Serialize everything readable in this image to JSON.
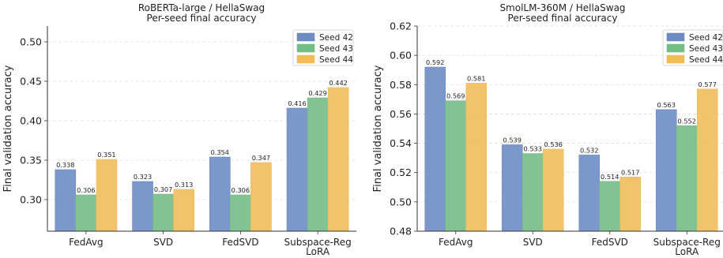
{
  "chart_data": [
    {
      "type": "bar",
      "title": "RoBERTa-large / HellaSwag",
      "subtitle": "Per-seed final accuracy",
      "xlabel": "",
      "ylabel": "Final validation accuracy",
      "categories": [
        "FedAvg",
        "SVD",
        "FedSVD",
        "Subspace-Reg\nLoRA"
      ],
      "ylim": [
        0.26,
        0.52
      ],
      "yticks": [
        "0.30",
        "0.35",
        "0.40",
        "0.45",
        "0.50"
      ],
      "ytick_values": [
        0.3,
        0.35,
        0.4,
        0.45,
        0.5
      ],
      "grid": true,
      "legend_position": "top-right",
      "series": [
        {
          "name": "Seed 42",
          "color": "#6e8cc4",
          "values": [
            0.338,
            0.323,
            0.354,
            0.416
          ],
          "labels": [
            "0.338",
            "0.323",
            "0.354",
            "0.416"
          ]
        },
        {
          "name": "Seed 43",
          "color": "#74bd85",
          "values": [
            0.306,
            0.307,
            0.306,
            0.429
          ],
          "labels": [
            "0.306",
            "0.307",
            "0.306",
            "0.429"
          ]
        },
        {
          "name": "Seed 44",
          "color": "#f0bc5a",
          "values": [
            0.351,
            0.313,
            0.347,
            0.442
          ],
          "labels": [
            "0.351",
            "0.313",
            "0.347",
            "0.442"
          ]
        }
      ]
    },
    {
      "type": "bar",
      "title": "SmolLM-360M / HellaSwag",
      "subtitle": "Per-seed final accuracy",
      "xlabel": "",
      "ylabel": "Final validation accuracy",
      "categories": [
        "FedAvg",
        "SVD",
        "FedSVD",
        "Subspace-Reg\nLoRA"
      ],
      "ylim": [
        0.48,
        0.62
      ],
      "yticks": [
        "0.48",
        "0.50",
        "0.52",
        "0.54",
        "0.56",
        "0.58",
        "0.60",
        "0.62"
      ],
      "ytick_values": [
        0.48,
        0.5,
        0.52,
        0.54,
        0.56,
        0.58,
        0.6,
        0.62
      ],
      "grid": true,
      "legend_position": "top-right",
      "series": [
        {
          "name": "Seed 42",
          "color": "#6e8cc4",
          "values": [
            0.592,
            0.539,
            0.532,
            0.563
          ],
          "labels": [
            "0.592",
            "0.539",
            "0.532",
            "0.563"
          ]
        },
        {
          "name": "Seed 43",
          "color": "#74bd85",
          "values": [
            0.569,
            0.533,
            0.514,
            0.552
          ],
          "labels": [
            "0.569",
            "0.533",
            "0.514",
            "0.552"
          ]
        },
        {
          "name": "Seed 44",
          "color": "#f0bc5a",
          "values": [
            0.581,
            0.536,
            0.517,
            0.577
          ],
          "labels": [
            "0.581",
            "0.536",
            "0.517",
            "0.577"
          ]
        }
      ]
    }
  ]
}
